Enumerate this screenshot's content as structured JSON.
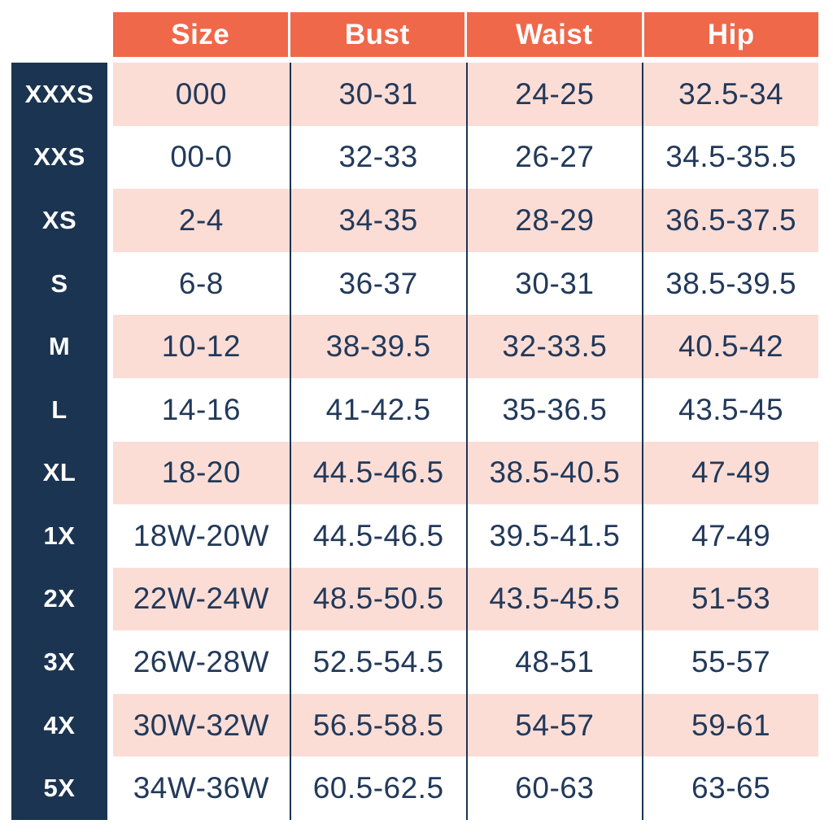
{
  "colors": {
    "header_bg": "#f0684a",
    "size_column_bg": "#1b3451",
    "row_stripe_pink": "#fbddd6",
    "row_stripe_white": "#ffffff",
    "cell_text": "#22395a",
    "header_text": "#ffffff"
  },
  "chart_data": {
    "type": "table",
    "columns": [
      "Size",
      "Bust",
      "Waist",
      "Hip"
    ],
    "row_labels": [
      "XXXS",
      "XXS",
      "XS",
      "S",
      "M",
      "L",
      "XL",
      "1X",
      "2X",
      "3X",
      "4X",
      "5X"
    ],
    "rows": [
      [
        "000",
        "30-31",
        "24-25",
        "32.5-34"
      ],
      [
        "00-0",
        "32-33",
        "26-27",
        "34.5-35.5"
      ],
      [
        "2-4",
        "34-35",
        "28-29",
        "36.5-37.5"
      ],
      [
        "6-8",
        "36-37",
        "30-31",
        "38.5-39.5"
      ],
      [
        "10-12",
        "38-39.5",
        "32-33.5",
        "40.5-42"
      ],
      [
        "14-16",
        "41-42.5",
        "35-36.5",
        "43.5-45"
      ],
      [
        "18-20",
        "44.5-46.5",
        "38.5-40.5",
        "47-49"
      ],
      [
        "18W-20W",
        "44.5-46.5",
        "39.5-41.5",
        "47-49"
      ],
      [
        "22W-24W",
        "48.5-50.5",
        "43.5-45.5",
        "51-53"
      ],
      [
        "26W-28W",
        "52.5-54.5",
        "48-51",
        "55-57"
      ],
      [
        "30W-32W",
        "56.5-58.5",
        "54-57",
        "59-61"
      ],
      [
        "34W-36W",
        "60.5-62.5",
        "60-63",
        "63-65"
      ]
    ],
    "layout": {
      "striping": "first data row pink, alternating pink/white",
      "grid": "vertical navy dividers between data columns only",
      "legend_position": "none"
    }
  }
}
